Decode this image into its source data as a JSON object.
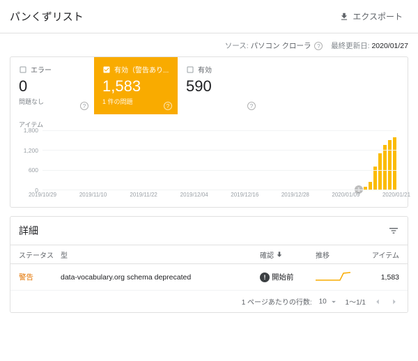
{
  "header": {
    "title": "パンくずリスト",
    "export_label": "エクスポート"
  },
  "meta": {
    "source_label": "ソース:",
    "source_value": "パソコン クローラ",
    "updated_label": "最終更新日:",
    "updated_value": "2020/01/27"
  },
  "stats": {
    "error": {
      "label": "エラー",
      "value": "0",
      "sub": "問題なし"
    },
    "warn": {
      "label": "有効（警告あり...",
      "value": "1,583",
      "sub": "1 件の問題"
    },
    "valid": {
      "label": "有効",
      "value": "590",
      "sub": ""
    }
  },
  "chart": {
    "y_title": "アイテム",
    "y_ticks": [
      "1,800",
      "1,200",
      "600",
      "0"
    ],
    "y_max": 1800,
    "x_labels": [
      "2019/10/29",
      "2019/11/10",
      "2019/11/22",
      "2019/12/04",
      "2019/12/16",
      "2019/12/28",
      "2020/01/09",
      "2020/01/21"
    ],
    "bars": [
      80,
      240,
      700,
      1100,
      1350,
      1500,
      1580
    ],
    "bar_color": "#fbbc04",
    "grid_color": "#f1f3f4",
    "marker_text": "1"
  },
  "details": {
    "title": "詳細",
    "columns": {
      "status": "ステータス",
      "type": "型",
      "confirm": "確認",
      "trend": "推移",
      "items": "アイテム"
    },
    "row": {
      "status": "警告",
      "type": "data-vocabulary.org schema deprecated",
      "confirm": "開始前",
      "items": "1,583",
      "status_color": "#e37400"
    },
    "pager": {
      "rows_label": "1 ページあたりの行数:",
      "rows_value": "10",
      "range": "1～1/1"
    }
  }
}
